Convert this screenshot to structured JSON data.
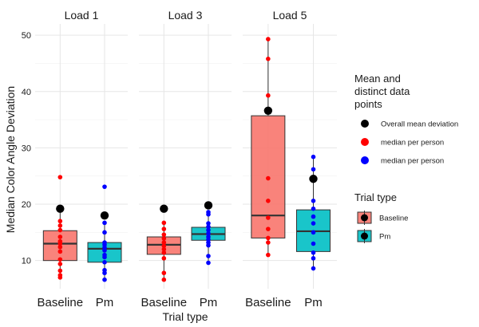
{
  "chart_data": {
    "type": "boxplot",
    "ylabel": "Median Color Angle Deviation",
    "xlabel": "Trial type",
    "ylim": [
      5,
      52
    ],
    "yticks": [
      10,
      20,
      30,
      40,
      50
    ],
    "grid": true,
    "facets": [
      {
        "title": "Load 1",
        "groups": [
          {
            "label": "Baseline",
            "min": 7,
            "q1": 10,
            "median": 13,
            "q3": 15.3,
            "max": 19.3,
            "mean": 19.2,
            "points": [
              24.8,
              19.3,
              17,
              16.2,
              15.4,
              14.2,
              13.4,
              13,
              12.4,
              11.6,
              10.2,
              9.4,
              8.2,
              7.4,
              7
            ]
          },
          {
            "label": "Pm",
            "min": 6.6,
            "q1": 9.7,
            "median": 12.1,
            "q3": 13.2,
            "max": 16.7,
            "mean": 18,
            "points": [
              23.1,
              16.7,
              15,
              13.2,
              12.8,
              12.3,
              11.8,
              11,
              10.6,
              9.7,
              8.3,
              7.8,
              6.6
            ]
          }
        ]
      },
      {
        "title": "Load 3",
        "groups": [
          {
            "label": "Baseline",
            "min": 6.6,
            "q1": 11.1,
            "median": 12.8,
            "q3": 14.2,
            "max": 16.7,
            "mean": 19.2,
            "points": [
              16.7,
              15.6,
              14.6,
              13.9,
              13.2,
              12.6,
              12,
              11.4,
              10.4,
              7.8,
              6.6
            ]
          },
          {
            "label": "Pm",
            "min": 9.6,
            "q1": 13.6,
            "median": 14.7,
            "q3": 15.9,
            "max": 18.6,
            "mean": 19.8,
            "points": [
              18.6,
              18.2,
              16.6,
              16,
              15.4,
              14.8,
              14.2,
              13.7,
              13.2,
              12.7,
              10.8,
              9.6
            ]
          }
        ]
      },
      {
        "title": "Load 5",
        "groups": [
          {
            "label": "Baseline",
            "min": 10.8,
            "q1": 14,
            "median": 18,
            "q3": 35.7,
            "max": 49.3,
            "mean": 36.6,
            "points": [
              49.3,
              45.8,
              39.3,
              24.6,
              20.6,
              17.6,
              15.6,
              14,
              13.2,
              11
            ]
          },
          {
            "label": "Pm",
            "min": 8.6,
            "q1": 11.6,
            "median": 15.2,
            "q3": 19,
            "max": 28.4,
            "mean": 24.5,
            "points": [
              28.4,
              26.2,
              20.6,
              19.2,
              17.8,
              16.6,
              15,
              13,
              11.4,
              10.4,
              8.6
            ]
          }
        ]
      }
    ],
    "legends": [
      {
        "title": [
          "Mean and",
          "distinct data",
          "points"
        ],
        "items": [
          {
            "label": "Overall mean deviation",
            "color": "#000000"
          },
          {
            "label": "median per person",
            "color": "#ff0000"
          },
          {
            "label": "median per person",
            "color": "#0000ff"
          }
        ]
      },
      {
        "title": [
          "Trial type"
        ],
        "items": [
          {
            "label": "Baseline",
            "color": "#f8766d"
          },
          {
            "label": "Pm",
            "color": "#00bfc4"
          }
        ]
      }
    ],
    "colors": {
      "baseline_fill": "#f8766d",
      "pm_fill": "#00bfc4",
      "baseline_points": "#ff0000",
      "pm_points": "#0000ff",
      "mean_points": "#000000"
    }
  }
}
